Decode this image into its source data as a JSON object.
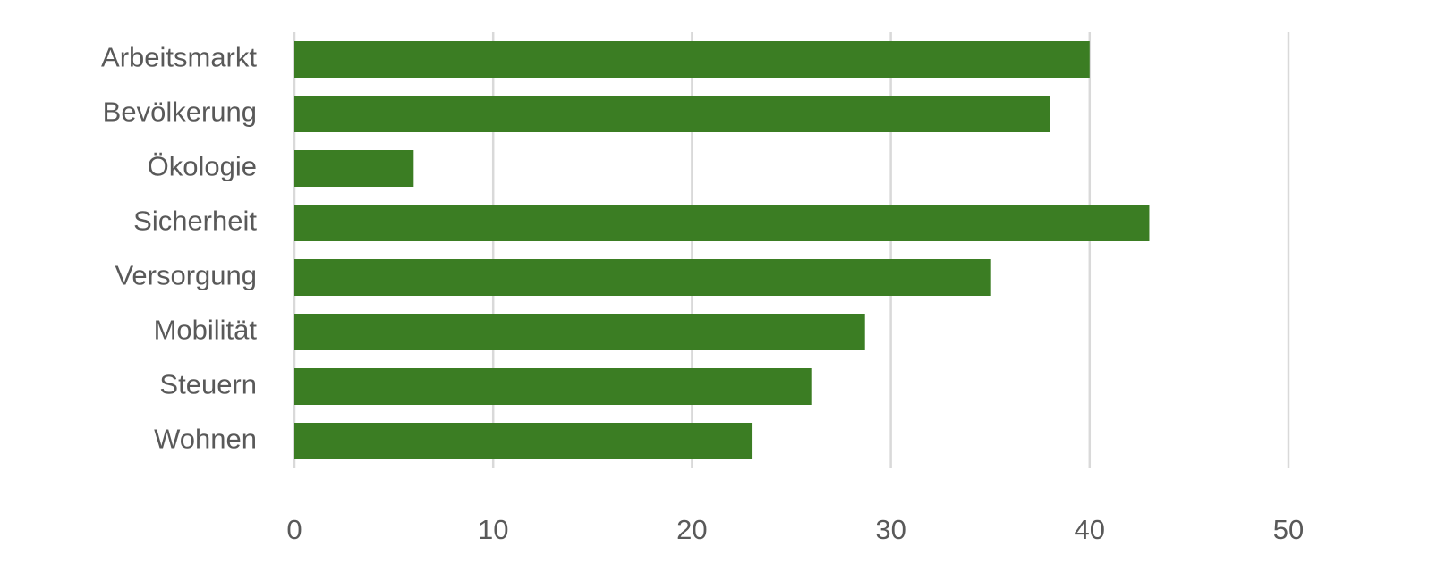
{
  "chart_data": {
    "type": "bar",
    "orientation": "horizontal",
    "categories": [
      "Arbeitsmarkt",
      "Bevölkerung",
      "Ökologie",
      "Sicherheit",
      "Versorgung",
      "Mobilität",
      "Steuern",
      "Wohnen"
    ],
    "values": [
      40,
      38,
      6,
      43,
      35,
      28.7,
      26,
      23
    ],
    "xlim": [
      0,
      50
    ],
    "xticks": [
      "0",
      "10",
      "20",
      "30",
      "40",
      "50"
    ],
    "grid": "vertical",
    "legend": "none",
    "colors": {
      "bar": "#3b7d23",
      "grid": "#d9d9d9",
      "text": "#595959"
    }
  }
}
